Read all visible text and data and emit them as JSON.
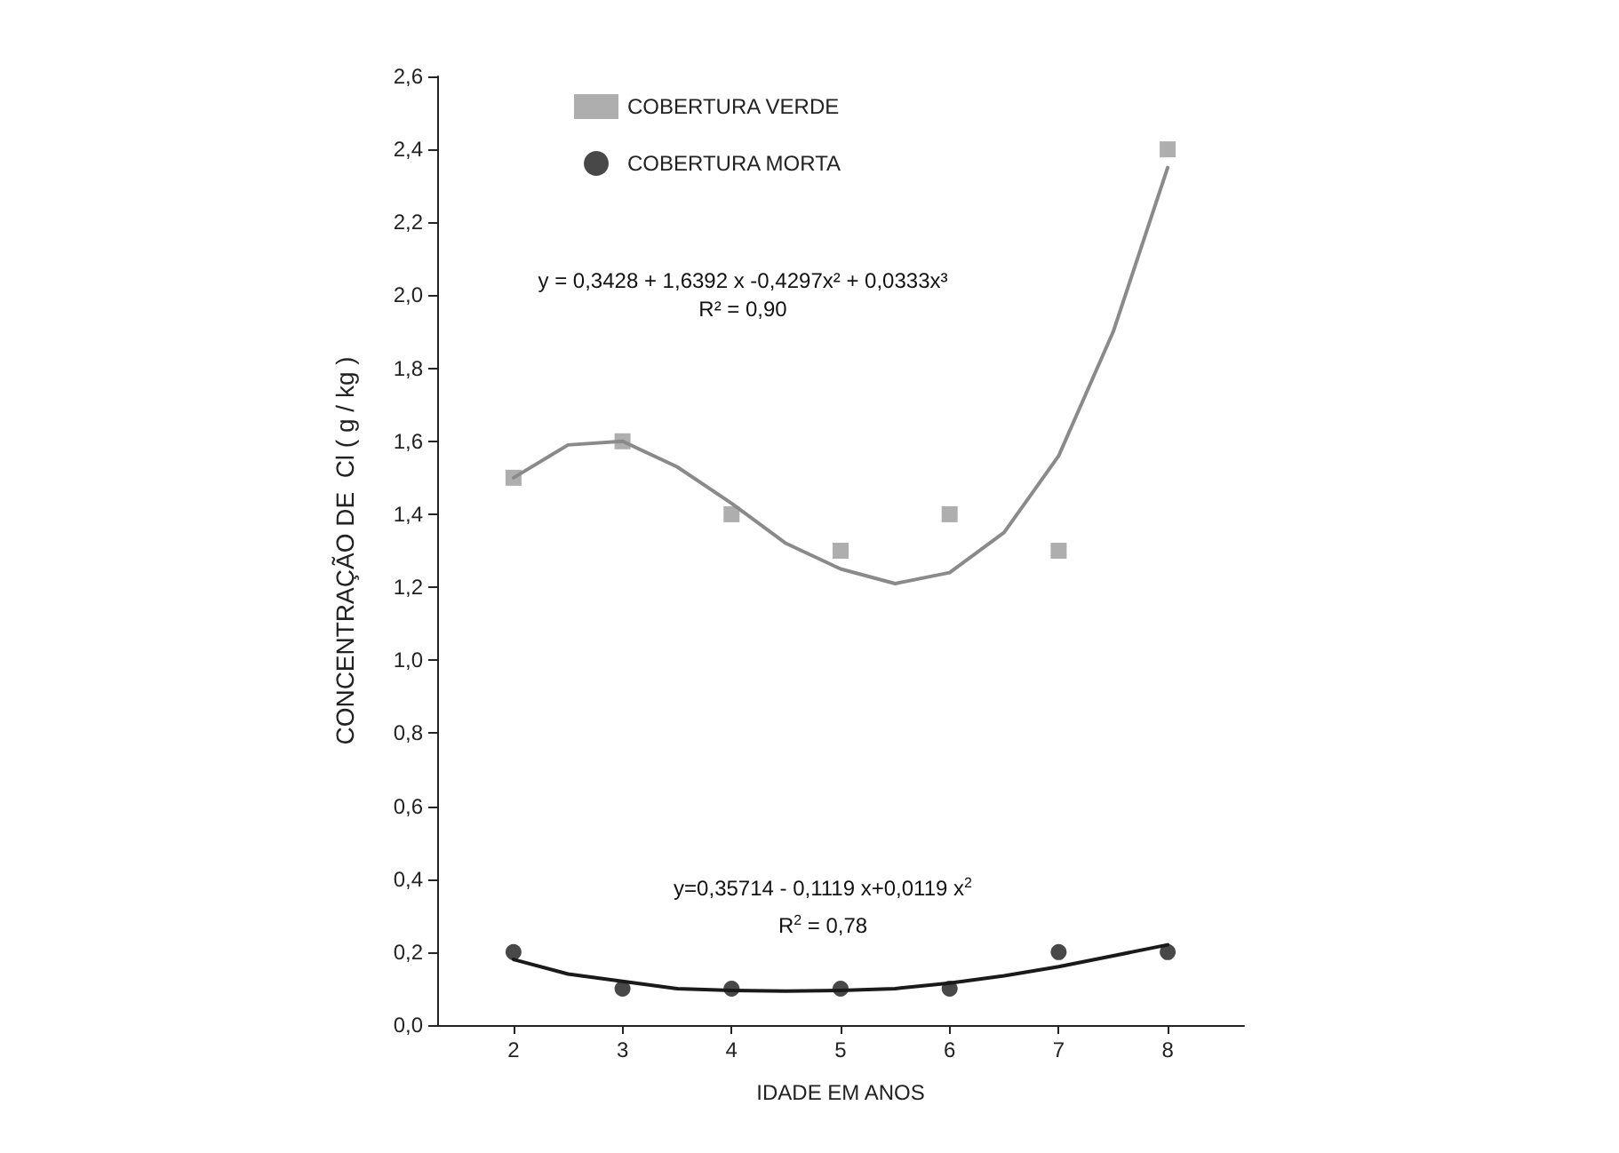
{
  "chart_data": {
    "type": "scatter",
    "xlabel": "IDADE EM ANOS",
    "ylabel": "CONCENTRAÇÃO DE  Cl ( g / kg )",
    "x": [
      2,
      3,
      4,
      5,
      6,
      7,
      8
    ],
    "series": [
      {
        "name": "COBERTURA VERDE",
        "color": "#9a9a9a",
        "marker": "square",
        "values": [
          1.5,
          1.6,
          1.4,
          1.3,
          1.4,
          1.3,
          2.4
        ]
      },
      {
        "name": "COBERTURA MORTA",
        "color": "#1a1a1a",
        "marker": "circle",
        "values": [
          0.2,
          0.1,
          0.1,
          0.1,
          0.1,
          0.2,
          0.2
        ]
      },
      {
        "type": "line",
        "color": "#8a8a8a",
        "marker": "none",
        "x": [
          2,
          2.5,
          3,
          3.5,
          4,
          4.5,
          5,
          5.5,
          6,
          6.5,
          7,
          7.5,
          8
        ],
        "values": [
          1.5,
          1.59,
          1.6,
          1.53,
          1.43,
          1.32,
          1.25,
          1.21,
          1.24,
          1.35,
          1.56,
          1.9,
          2.35
        ]
      },
      {
        "type": "line",
        "color": "#1a1a1a",
        "marker": "none",
        "x": [
          2,
          2.5,
          3,
          3.5,
          4,
          4.5,
          5,
          5.5,
          6,
          6.5,
          7,
          7.5,
          8
        ],
        "values": [
          0.18,
          0.14,
          0.12,
          0.1,
          0.095,
          0.093,
          0.095,
          0.1,
          0.115,
          0.135,
          0.16,
          0.19,
          0.22
        ]
      }
    ],
    "annotations": [
      "y = 0,3428 + 1,6392 x -0,4297x² + 0,0333x³",
      "R² = 0,90",
      "y=0,35714 - 0,1119 x+0,0119 x$^{2}$",
      "R$^{2}$ = 0,78"
    ],
    "xlim": [
      1.3,
      8.7
    ],
    "xticks": [
      2,
      3,
      4,
      5,
      6,
      7,
      8
    ],
    "ylim": [
      0,
      2.6
    ],
    "yticks": [
      {
        "value": 0,
        "label": "0,0"
      },
      {
        "value": 0.2,
        "label": "0,2"
      },
      {
        "value": 0.4,
        "label": "0,4"
      },
      {
        "value": 0.6,
        "label": "0,6"
      },
      {
        "value": 0.8,
        "label": "0,8"
      },
      {
        "value": 1,
        "label": "1,0"
      },
      {
        "value": 1.2,
        "label": "1,2"
      },
      {
        "value": 1.4,
        "label": "1,4"
      },
      {
        "value": 1.6,
        "label": "1,6"
      },
      {
        "value": 1.8,
        "label": "1,8"
      },
      {
        "value": 2,
        "label": "2,0"
      },
      {
        "value": 2.2,
        "label": "2,2"
      },
      {
        "value": 2.4,
        "label": "2,4"
      },
      {
        "value": 2.6,
        "label": "2,6"
      }
    ],
    "grid": false,
    "legend": "top left"
  }
}
